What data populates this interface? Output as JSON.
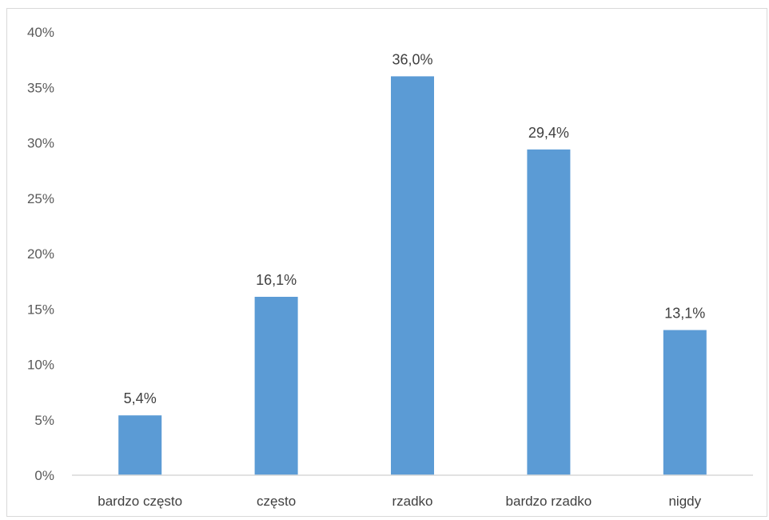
{
  "chart_data": {
    "type": "bar",
    "title": "",
    "xlabel": "",
    "ylabel": "",
    "categories": [
      "bardzo często",
      "często",
      "rzadko",
      "bardzo rzadko",
      "nigdy"
    ],
    "values": [
      5.4,
      16.1,
      36.0,
      29.4,
      13.1
    ],
    "data_labels": [
      "5,4%",
      "16,1%",
      "36,0%",
      "29,4%",
      "13,1%"
    ],
    "ylim": [
      0,
      40
    ],
    "yticks": [
      0,
      5,
      10,
      15,
      20,
      25,
      30,
      35,
      40
    ],
    "ytick_labels": [
      "0%",
      "5%",
      "10%",
      "15%",
      "20%",
      "25%",
      "30%",
      "35%",
      "40%"
    ],
    "grid": false,
    "legend": "none",
    "bar_color": "#5b9bd5",
    "axis_color": "#d9d9d9"
  }
}
